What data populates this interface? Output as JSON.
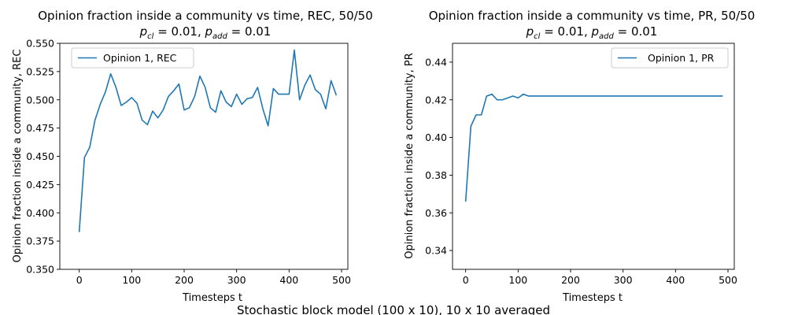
{
  "figure": {
    "suptitle": "Stochastic block model (100 x 10), 10 x 10 averaged"
  },
  "chart_data": [
    {
      "type": "line",
      "title": "Opinion fraction inside a community vs time, REC, 50/50",
      "subtitle": "p_cl = 0.01, p_add = 0.01",
      "xlabel": "Timesteps t",
      "ylabel": "Opinion fraction inside a community, REC",
      "xlim": [
        -37,
        512
      ],
      "ylim": [
        0.35,
        0.55
      ],
      "xticks": [
        0,
        100,
        200,
        300,
        400,
        500
      ],
      "yticks": [
        0.35,
        0.375,
        0.4,
        0.425,
        0.45,
        0.475,
        0.5,
        0.525,
        0.55
      ],
      "ytick_labels": [
        "0.350",
        "0.375",
        "0.400",
        "0.425",
        "0.450",
        "0.475",
        "0.500",
        "0.525",
        "0.550"
      ],
      "grid": false,
      "legend_position": "upper-left",
      "series": [
        {
          "name": "Opinion 1, REC",
          "color": "#1f77b4",
          "x": [
            0,
            10,
            20,
            30,
            40,
            50,
            60,
            70,
            80,
            90,
            100,
            110,
            120,
            130,
            140,
            150,
            160,
            170,
            180,
            190,
            200,
            210,
            220,
            230,
            240,
            250,
            260,
            270,
            280,
            290,
            300,
            310,
            320,
            330,
            340,
            350,
            360,
            370,
            380,
            390,
            400,
            410,
            420,
            430,
            440,
            450,
            460,
            470,
            480,
            490
          ],
          "y": [
            0.383,
            0.449,
            0.458,
            0.482,
            0.496,
            0.507,
            0.523,
            0.511,
            0.495,
            0.498,
            0.502,
            0.497,
            0.482,
            0.478,
            0.49,
            0.484,
            0.491,
            0.503,
            0.508,
            0.514,
            0.491,
            0.493,
            0.503,
            0.521,
            0.511,
            0.493,
            0.489,
            0.508,
            0.498,
            0.494,
            0.505,
            0.496,
            0.501,
            0.502,
            0.511,
            0.492,
            0.477,
            0.51,
            0.505,
            0.505,
            0.505,
            0.544,
            0.5,
            0.513,
            0.522,
            0.509,
            0.505,
            0.492,
            0.517,
            0.504
          ]
        }
      ]
    },
    {
      "type": "line",
      "title": "Opinion fraction inside a community vs time, PR, 50/50",
      "subtitle": "p_cl = 0.01, p_add = 0.01",
      "xlabel": "Timesteps t",
      "ylabel": "Opinion fraction inside a community, PR",
      "xlim": [
        -25,
        512
      ],
      "ylim": [
        0.33,
        0.45
      ],
      "xticks": [
        0,
        100,
        200,
        300,
        400,
        500
      ],
      "yticks": [
        0.34,
        0.36,
        0.38,
        0.4,
        0.42,
        0.44
      ],
      "ytick_labels": [
        "0.34",
        "0.36",
        "0.38",
        "0.40",
        "0.42",
        "0.44"
      ],
      "grid": false,
      "legend_position": "upper-right",
      "series": [
        {
          "name": "Opinion 1, PR",
          "color": "#1f77b4",
          "x": [
            0,
            10,
            20,
            30,
            40,
            50,
            60,
            70,
            80,
            90,
            100,
            110,
            120,
            130,
            140,
            150,
            160,
            170,
            180,
            190,
            200,
            210,
            220,
            230,
            240,
            250,
            260,
            270,
            280,
            290,
            300,
            310,
            320,
            330,
            340,
            350,
            360,
            370,
            380,
            390,
            400,
            410,
            420,
            430,
            440,
            450,
            460,
            470,
            480,
            490
          ],
          "y": [
            0.366,
            0.406,
            0.412,
            0.412,
            0.422,
            0.423,
            0.42,
            0.42,
            0.421,
            0.422,
            0.421,
            0.423,
            0.422,
            0.422,
            0.422,
            0.422,
            0.422,
            0.422,
            0.422,
            0.422,
            0.422,
            0.422,
            0.422,
            0.422,
            0.422,
            0.422,
            0.422,
            0.422,
            0.422,
            0.422,
            0.422,
            0.422,
            0.422,
            0.422,
            0.422,
            0.422,
            0.422,
            0.422,
            0.422,
            0.422,
            0.422,
            0.422,
            0.422,
            0.422,
            0.422,
            0.422,
            0.422,
            0.422,
            0.422,
            0.422
          ]
        }
      ]
    }
  ]
}
